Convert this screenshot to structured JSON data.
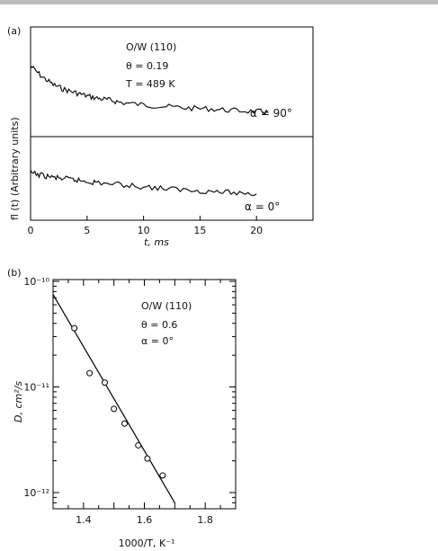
{
  "chart_data": [
    {
      "panel_label": "(a)",
      "type": "line",
      "ylabel": "fl (t)  (Arbitrary units)",
      "xlabel": "t, ms",
      "xlim": [
        0,
        25
      ],
      "x_ticks": [
        0,
        5,
        10,
        15,
        20
      ],
      "annotations": [
        "O/W (110)",
        "θ = 0.19",
        "T = 489 K"
      ],
      "series": [
        {
          "name": "α = 90°",
          "x": [
            0,
            1,
            2,
            3,
            4,
            5,
            6,
            7,
            8,
            10,
            12,
            14,
            16,
            18,
            20,
            21
          ],
          "y": [
            0.85,
            0.72,
            0.62,
            0.56,
            0.52,
            0.48,
            0.45,
            0.43,
            0.4,
            0.37,
            0.35,
            0.33,
            0.32,
            0.3,
            0.29,
            0.28
          ]
        },
        {
          "name": "α = 0°",
          "x": [
            0,
            1,
            2,
            3,
            4,
            5,
            6,
            8,
            10,
            12,
            14,
            16,
            18,
            20
          ],
          "y": [
            0.7,
            0.66,
            0.63,
            0.61,
            0.59,
            0.57,
            0.55,
            0.52,
            0.49,
            0.46,
            0.44,
            0.42,
            0.4,
            0.38
          ]
        }
      ]
    },
    {
      "panel_label": "(b)",
      "type": "scatter",
      "ylabel": "D, cm²/s",
      "xlabel": "1000/T, K⁻¹",
      "xlim": [
        1.3,
        1.9
      ],
      "x_ticks": [
        1.4,
        1.6,
        1.8
      ],
      "y_scale": "log",
      "ylim": [
        1e-12,
        1e-10
      ],
      "y_ticks": [
        "10⁻¹⁰",
        "10⁻¹¹",
        "10⁻¹²"
      ],
      "annotations": [
        "O/W (110)",
        "θ = 0.6",
        "α = 0°"
      ],
      "points": [
        {
          "x": 1.37,
          "y": 3.6e-11
        },
        {
          "x": 1.42,
          "y": 1.35e-11
        },
        {
          "x": 1.47,
          "y": 1.1e-11
        },
        {
          "x": 1.5,
          "y": 6.2e-12
        },
        {
          "x": 1.535,
          "y": 4.5e-12
        },
        {
          "x": 1.58,
          "y": 2.8e-12
        },
        {
          "x": 1.61,
          "y": 2.1e-12
        },
        {
          "x": 1.66,
          "y": 1.45e-12
        }
      ],
      "fit_line": {
        "x": [
          1.3,
          1.7
        ],
        "y": [
          7.5e-11,
          8e-13
        ]
      }
    }
  ]
}
